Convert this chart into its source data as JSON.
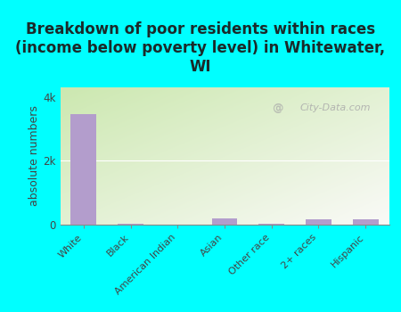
{
  "title": "Breakdown of poor residents within races\n(income below poverty level) in Whitewater,\nWI",
  "categories": [
    "White",
    "Black",
    "American Indian",
    "Asian",
    "Other race",
    "2+ races",
    "Hispanic"
  ],
  "values": [
    3450,
    28,
    4,
    190,
    22,
    160,
    155
  ],
  "bar_color": "#b39dcc",
  "ylabel": "absolute numbers",
  "yticks": [
    0,
    2000,
    4000
  ],
  "ytick_labels": [
    "0",
    "2k",
    "4k"
  ],
  "ylim": [
    0,
    4300
  ],
  "background_color": "#00ffff",
  "plot_bg_top_left": "#cce8b0",
  "plot_bg_bottom_right": "#f5faf0",
  "watermark": "City-Data.com",
  "title_fontsize": 12,
  "title_color": "#1a2a2a",
  "axis_label_fontsize": 9,
  "tick_label_color": "#444444"
}
